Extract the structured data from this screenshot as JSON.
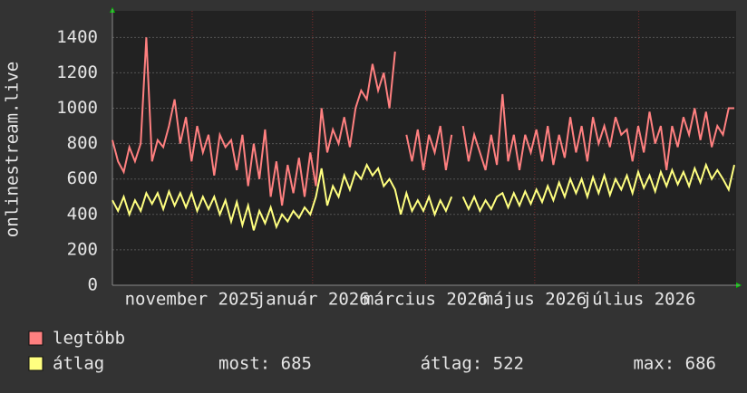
{
  "chart_data": {
    "type": "line",
    "y_label": "onlinestream.live",
    "xlim": [
      0,
      110
    ],
    "xticks": [
      {
        "value": 14.1,
        "label": "november 2025"
      },
      {
        "value": 35.4,
        "label": "január 2026"
      },
      {
        "value": 55.4,
        "label": "március 2026"
      },
      {
        "value": 74.7,
        "label": "május 2026"
      },
      {
        "value": 93.1,
        "label": "július 2026"
      }
    ],
    "ylim": [
      0,
      1550
    ],
    "yticks": [
      0,
      200,
      400,
      600,
      800,
      1000,
      1200,
      1400
    ],
    "grid": true,
    "series": [
      {
        "name": "legtöbb",
        "color": "#ff8080",
        "values": [
          820,
          700,
          640,
          780,
          700,
          800,
          1400,
          700,
          820,
          780,
          900,
          1050,
          800,
          950,
          700,
          900,
          750,
          850,
          620,
          850,
          780,
          820,
          650,
          850,
          560,
          800,
          600,
          880,
          500,
          700,
          450,
          680,
          520,
          720,
          500,
          750,
          560,
          1000,
          750,
          880,
          800,
          950,
          780,
          1000,
          1100,
          1050,
          1250,
          1100,
          1200,
          1000,
          1320,
          null,
          850,
          700,
          880,
          650,
          850,
          750,
          900,
          650,
          850,
          null,
          900,
          700,
          850,
          750,
          650,
          850,
          680,
          1080,
          700,
          850,
          650,
          850,
          750,
          880,
          700,
          900,
          680,
          850,
          720,
          950,
          750,
          900,
          700,
          950,
          800,
          900,
          780,
          950,
          850,
          880,
          700,
          900,
          750,
          980,
          800,
          900,
          650,
          900,
          780,
          950,
          850,
          1000,
          820,
          980,
          780,
          900,
          850,
          1000,
          1000
        ]
      },
      {
        "name": "átlag",
        "color": "#ffff80",
        "values": [
          480,
          420,
          500,
          400,
          480,
          420,
          520,
          460,
          520,
          430,
          530,
          450,
          520,
          440,
          520,
          420,
          500,
          430,
          500,
          400,
          480,
          360,
          470,
          340,
          450,
          310,
          420,
          350,
          440,
          330,
          400,
          360,
          420,
          380,
          440,
          400,
          500,
          660,
          450,
          560,
          500,
          620,
          540,
          640,
          600,
          680,
          620,
          660,
          560,
          600,
          540,
          400,
          520,
          420,
          480,
          420,
          500,
          400,
          480,
          420,
          500,
          null,
          500,
          430,
          500,
          420,
          480,
          430,
          500,
          520,
          440,
          520,
          450,
          530,
          460,
          540,
          470,
          560,
          480,
          580,
          500,
          600,
          520,
          600,
          500,
          610,
          520,
          620,
          510,
          600,
          540,
          620,
          520,
          640,
          550,
          620,
          530,
          640,
          560,
          650,
          570,
          640,
          560,
          660,
          580,
          680,
          600,
          650,
          600,
          540,
          680
        ]
      }
    ],
    "stats": [
      "most: 685",
      "átlag: 522",
      "max: 686"
    ]
  }
}
